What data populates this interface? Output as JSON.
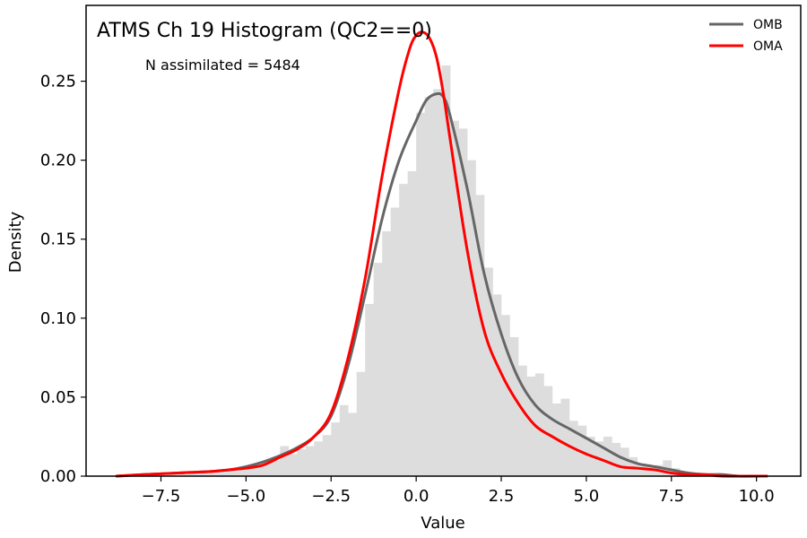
{
  "chart_data": {
    "type": "line",
    "title": "ATMS Ch 19 Histogram (QC2==0)",
    "annotation": "N assimilated = 5484",
    "xlabel": "Value",
    "ylabel": "Density",
    "xlim": [
      -9.7,
      11.3
    ],
    "ylim": [
      0,
      0.298
    ],
    "xticks": [
      -7.5,
      -5.0,
      -2.5,
      0.0,
      2.5,
      5.0,
      7.5,
      10.0
    ],
    "xtick_labels": [
      "−7.5",
      "−5.0",
      "−2.5",
      "0.0",
      "2.5",
      "5.0",
      "7.5",
      "10.0"
    ],
    "yticks": [
      0.0,
      0.05,
      0.1,
      0.15,
      0.2,
      0.25
    ],
    "ytick_labels": [
      "0.00",
      "0.05",
      "0.10",
      "0.15",
      "0.20",
      "0.25"
    ],
    "grid": false,
    "legend_position": "top-right",
    "histogram": {
      "bin_width": 0.25,
      "color": "#dddddd",
      "bins": [
        [
          -8.75,
          0.0
        ],
        [
          -8.5,
          0.0
        ],
        [
          -8.25,
          0.001
        ],
        [
          -8.0,
          0.001
        ],
        [
          -7.75,
          0.001
        ],
        [
          -7.5,
          0.002
        ],
        [
          -7.25,
          0.001
        ],
        [
          -7.0,
          0.002
        ],
        [
          -6.75,
          0.002
        ],
        [
          -6.5,
          0.002
        ],
        [
          -6.25,
          0.003
        ],
        [
          -6.0,
          0.003
        ],
        [
          -5.75,
          0.004
        ],
        [
          -5.5,
          0.004
        ],
        [
          -5.25,
          0.005
        ],
        [
          -5.0,
          0.006
        ],
        [
          -4.75,
          0.007
        ],
        [
          -4.5,
          0.008
        ],
        [
          -4.25,
          0.01
        ],
        [
          -4.0,
          0.019
        ],
        [
          -3.75,
          0.014
        ],
        [
          -3.5,
          0.017
        ],
        [
          -3.25,
          0.019
        ],
        [
          -3.0,
          0.022
        ],
        [
          -2.75,
          0.026
        ],
        [
          -2.5,
          0.034
        ],
        [
          -2.25,
          0.045
        ],
        [
          -2.0,
          0.04
        ],
        [
          -1.75,
          0.066
        ],
        [
          -1.5,
          0.109
        ],
        [
          -1.25,
          0.135
        ],
        [
          -1.0,
          0.155
        ],
        [
          -0.75,
          0.17
        ],
        [
          -0.5,
          0.185
        ],
        [
          -0.25,
          0.193
        ],
        [
          0.0,
          0.23
        ],
        [
          0.25,
          0.24
        ],
        [
          0.5,
          0.245
        ],
        [
          0.75,
          0.26
        ],
        [
          1.0,
          0.225
        ],
        [
          1.25,
          0.22
        ],
        [
          1.5,
          0.2
        ],
        [
          1.75,
          0.178
        ],
        [
          2.0,
          0.132
        ],
        [
          2.25,
          0.115
        ],
        [
          2.5,
          0.102
        ],
        [
          2.75,
          0.088
        ],
        [
          3.0,
          0.07
        ],
        [
          3.25,
          0.063
        ],
        [
          3.5,
          0.065
        ],
        [
          3.75,
          0.057
        ],
        [
          4.0,
          0.046
        ],
        [
          4.25,
          0.049
        ],
        [
          4.5,
          0.035
        ],
        [
          4.75,
          0.032
        ],
        [
          5.0,
          0.025
        ],
        [
          5.25,
          0.022
        ],
        [
          5.5,
          0.025
        ],
        [
          5.75,
          0.021
        ],
        [
          6.0,
          0.018
        ],
        [
          6.25,
          0.012
        ],
        [
          6.5,
          0.008
        ],
        [
          6.75,
          0.006
        ],
        [
          7.0,
          0.007
        ],
        [
          7.25,
          0.01
        ],
        [
          7.5,
          0.005
        ],
        [
          7.75,
          0.003
        ],
        [
          8.0,
          0.002
        ],
        [
          8.25,
          0.001
        ],
        [
          8.5,
          0.001
        ]
      ]
    },
    "series": [
      {
        "name": "OMB",
        "color": "#666666",
        "x": [
          -8.8,
          -8.0,
          -7.0,
          -6.0,
          -5.5,
          -5.0,
          -4.5,
          -4.0,
          -3.5,
          -3.0,
          -2.5,
          -2.0,
          -1.5,
          -1.0,
          -0.5,
          0.0,
          0.3,
          0.6,
          0.8,
          1.0,
          1.5,
          2.0,
          2.5,
          3.0,
          3.5,
          4.0,
          4.5,
          5.0,
          5.5,
          6.0,
          6.5,
          7.0,
          7.5,
          8.0,
          8.5,
          9.0,
          9.5,
          10.3
        ],
        "y": [
          0.0,
          0.001,
          0.002,
          0.003,
          0.004,
          0.006,
          0.009,
          0.013,
          0.018,
          0.025,
          0.038,
          0.07,
          0.115,
          0.163,
          0.2,
          0.225,
          0.238,
          0.242,
          0.24,
          0.228,
          0.182,
          0.128,
          0.09,
          0.062,
          0.045,
          0.036,
          0.03,
          0.024,
          0.018,
          0.012,
          0.008,
          0.006,
          0.004,
          0.002,
          0.001,
          0.001,
          0.0,
          0.0
        ]
      },
      {
        "name": "OMA",
        "color": "#ff0000",
        "x": [
          -8.8,
          -8.0,
          -7.0,
          -6.0,
          -5.5,
          -5.0,
          -4.5,
          -4.0,
          -3.5,
          -3.0,
          -2.5,
          -2.0,
          -1.5,
          -1.0,
          -0.5,
          -0.2,
          0.0,
          0.2,
          0.4,
          0.6,
          0.8,
          1.0,
          1.5,
          2.0,
          2.5,
          3.0,
          3.5,
          4.0,
          4.5,
          5.0,
          5.5,
          6.0,
          6.5,
          7.0,
          7.5,
          8.0,
          8.5,
          9.0,
          10.3
        ],
        "y": [
          0.0,
          0.001,
          0.002,
          0.003,
          0.004,
          0.005,
          0.007,
          0.012,
          0.017,
          0.025,
          0.04,
          0.075,
          0.125,
          0.19,
          0.245,
          0.27,
          0.279,
          0.281,
          0.277,
          0.265,
          0.242,
          0.213,
          0.143,
          0.092,
          0.065,
          0.046,
          0.032,
          0.025,
          0.019,
          0.014,
          0.01,
          0.006,
          0.005,
          0.004,
          0.002,
          0.001,
          0.001,
          0.0,
          0.0
        ]
      }
    ]
  }
}
